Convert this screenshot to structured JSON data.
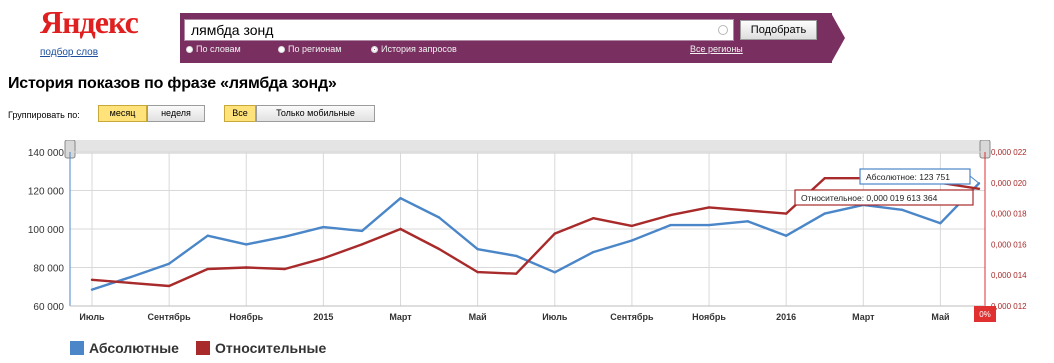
{
  "header": {
    "logo": "Яндекс",
    "logo_sub": "подбор слов",
    "search_value": "лямбда зонд",
    "submit_label": "Подобрать",
    "modes": [
      {
        "label": "По словам",
        "selected": false
      },
      {
        "label": "По регионам",
        "selected": false
      },
      {
        "label": "История запросов",
        "selected": true
      }
    ],
    "regions_link": "Все регионы",
    "band_color": "#7a2f61"
  },
  "page_title": "История показов по фразе «лямбда зонд»",
  "controls": {
    "group_label": "Группировать по:",
    "group_options": [
      {
        "label": "месяц",
        "active": true
      },
      {
        "label": "неделя",
        "active": false
      }
    ],
    "device_options": [
      {
        "label": "Все",
        "active": true
      },
      {
        "label": "Только мобильные",
        "active": false
      }
    ]
  },
  "chart_data": {
    "type": "line",
    "x_tick_labels": [
      "Июль",
      "Сентябрь",
      "Ноябрь",
      "2015",
      "Март",
      "Май",
      "Июль",
      "Сентябрь",
      "Ноябрь",
      "2016",
      "Март",
      "Май"
    ],
    "x_tick_index": [
      0,
      2,
      4,
      6,
      8,
      10,
      12,
      14,
      16,
      18,
      20,
      22
    ],
    "y_left": {
      "min": 60000,
      "max": 140000,
      "ticks": [
        60000,
        80000,
        100000,
        120000,
        140000
      ],
      "tick_labels": [
        "60 000",
        "80 000",
        "100 000",
        "120 000",
        "140 000"
      ]
    },
    "y_right": {
      "min": 1.2e-05,
      "max": 2.2e-05,
      "tick_labels": [
        "0,000 012",
        "0,000 014",
        "0,000 016",
        "0,000 018",
        "0,000 020",
        "0,000 022"
      ]
    },
    "grid": true,
    "legend_position": "bottom-left",
    "end_marker": "0%",
    "series": [
      {
        "name": "Абсолютные",
        "axis": "left",
        "color": "#4a86c8",
        "values": [
          68500,
          75000,
          82000,
          96500,
          92000,
          96000,
          101000,
          99000,
          116000,
          106000,
          89500,
          86000,
          77500,
          88000,
          94000,
          102000,
          102000,
          104000,
          96500,
          108000,
          112500,
          110000,
          103000,
          123751
        ]
      },
      {
        "name": "Относительные",
        "axis": "right",
        "color": "#a82a2a",
        "values": [
          1.37e-05,
          1.35e-05,
          1.33e-05,
          1.44e-05,
          1.45e-05,
          1.44e-05,
          1.51e-05,
          1.6e-05,
          1.7e-05,
          1.57e-05,
          1.42e-05,
          1.41e-05,
          1.67e-05,
          1.77e-05,
          1.72e-05,
          1.79e-05,
          1.84e-05,
          1.82e-05,
          1.8e-05,
          2.03e-05,
          2.03e-05,
          2e-05,
          2e-05,
          1.9613364e-05
        ]
      }
    ],
    "tooltips": [
      {
        "label": "Абсолютное: 123 751",
        "color": "#4a86c8"
      },
      {
        "label": "Относительное: 0,000 019 613 364",
        "color": "#a82a2a"
      }
    ]
  }
}
